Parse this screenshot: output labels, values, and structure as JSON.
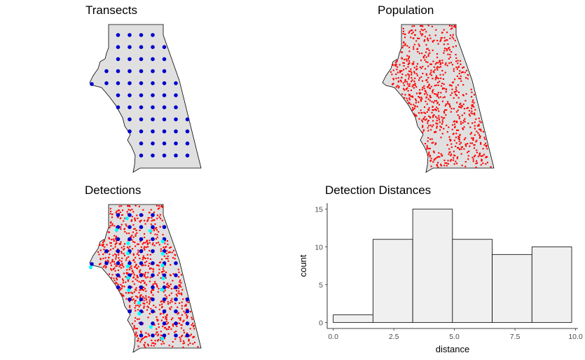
{
  "panels": {
    "transects": {
      "title": "Transects"
    },
    "population": {
      "title": "Population"
    },
    "detections": {
      "title": "Detections"
    },
    "histogram": {
      "title": "Detection Distances"
    }
  },
  "colors": {
    "region_fill": "#e0e0e0",
    "region_stroke": "#000000",
    "transect_point": "#0000cd",
    "population_point": "#ff0000",
    "detected_point": "#00ffff",
    "bar_fill": "#f0f0f0",
    "bar_stroke": "#000000"
  },
  "chart_data": [
    {
      "type": "scatter",
      "title": "Transects",
      "description_points": "blue transect points on a regular grid within the region"
    },
    {
      "type": "scatter",
      "title": "Population",
      "description_points": "red population points scattered across the region"
    },
    {
      "type": "scatter",
      "title": "Detections",
      "description_points": "population (red), transects (blue), detected (cyan)"
    },
    {
      "type": "bar",
      "title": "Detection Distances",
      "xlabel": "distance",
      "ylabel": "count",
      "bins": [
        {
          "x0": 0.0,
          "x1": 1.64,
          "count": 1
        },
        {
          "x0": 1.64,
          "x1": 3.28,
          "count": 11
        },
        {
          "x0": 3.28,
          "x1": 4.92,
          "count": 15
        },
        {
          "x0": 4.92,
          "x1": 6.56,
          "count": 11
        },
        {
          "x0": 6.56,
          "x1": 8.2,
          "count": 9
        },
        {
          "x0": 8.2,
          "x1": 9.84,
          "count": 10
        }
      ],
      "xlim": [
        -0.25,
        10.1
      ],
      "ylim": [
        -0.8,
        15.8
      ],
      "xticks": [
        0.0,
        2.5,
        5.0,
        7.5,
        10.0
      ],
      "xtick_labels": [
        "0.0",
        "2.5",
        "5.0",
        "7.5",
        "10.0"
      ],
      "yticks": [
        0,
        5,
        10,
        15
      ],
      "ytick_labels": [
        "0",
        "5",
        "10",
        "15"
      ]
    }
  ]
}
